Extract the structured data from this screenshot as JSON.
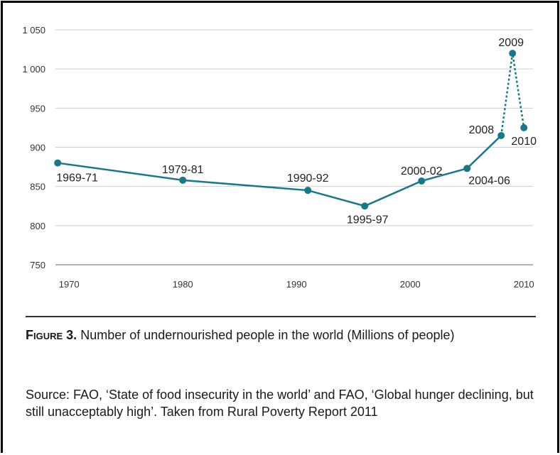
{
  "chart_data": {
    "type": "line",
    "x_ticks": [
      1970,
      1980,
      1990,
      2000,
      2010
    ],
    "y_ticks": [
      "750",
      "800",
      "850",
      "900",
      "950",
      "1 000",
      "1 050"
    ],
    "y_tick_values": [
      750,
      800,
      850,
      900,
      950,
      1000,
      1050
    ],
    "xlim": [
      1968.8,
      2010.8
    ],
    "ylim": [
      750,
      1050
    ],
    "grid": true,
    "points": [
      {
        "label": "1969-71",
        "x": 1969,
        "y": 880
      },
      {
        "label": "1979-81",
        "x": 1980,
        "y": 858
      },
      {
        "label": "1990-92",
        "x": 1991,
        "y": 845
      },
      {
        "label": "1995-97",
        "x": 1996,
        "y": 825
      },
      {
        "label": "2000-02",
        "x": 2001,
        "y": 857
      },
      {
        "label": "2004-06",
        "x": 2005,
        "y": 873
      },
      {
        "label": "2008",
        "x": 2008,
        "y": 915
      },
      {
        "label": "2009",
        "x": 2009,
        "y": 1020
      },
      {
        "label": "2010",
        "x": 2010,
        "y": 925
      }
    ],
    "dashed_from_index": 6,
    "color": "#17788a"
  },
  "caption": {
    "figure_label": "Figure 3.",
    "text": " Number of undernourished  people in the world (Millions of people)"
  },
  "source": "Source: FAO, ‘State of food insecurity in the world’ and FAO, ‘Global hunger declining, but still unacceptably high’. Taken from Rural Poverty Report 2011"
}
